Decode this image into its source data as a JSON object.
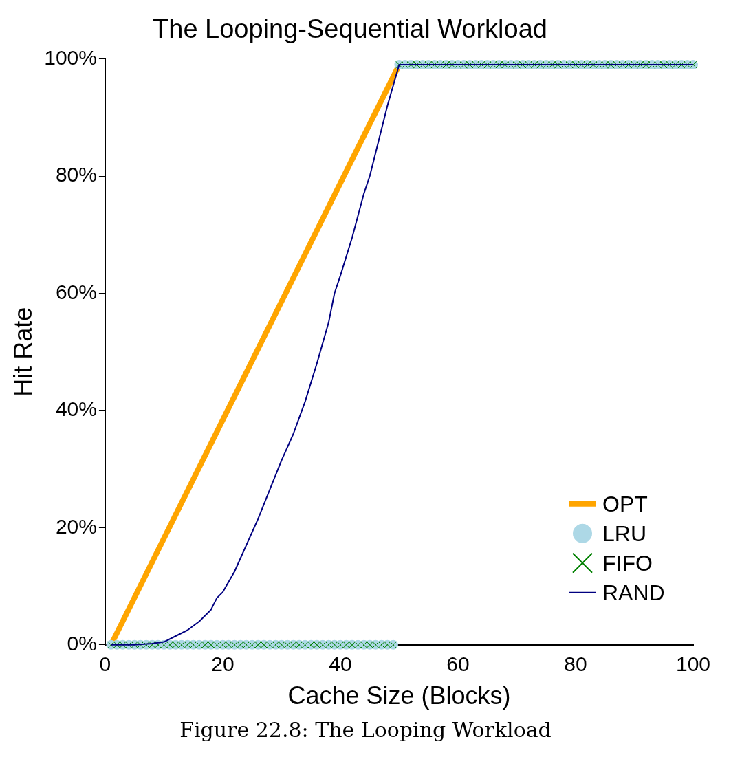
{
  "chart_data": {
    "type": "line",
    "title": "The Looping-Sequential Workload",
    "xlabel": "Cache Size (Blocks)",
    "ylabel": "Hit Rate",
    "annotations": [
      "Figure 22.8: The Looping Workload"
    ],
    "x": [
      1,
      2,
      3,
      4,
      5,
      6,
      7,
      8,
      9,
      10,
      11,
      12,
      13,
      14,
      15,
      16,
      17,
      18,
      19,
      20,
      21,
      22,
      23,
      24,
      25,
      26,
      27,
      28,
      29,
      30,
      31,
      32,
      33,
      34,
      35,
      36,
      37,
      38,
      39,
      40,
      41,
      42,
      43,
      44,
      45,
      46,
      47,
      48,
      49,
      50,
      51,
      52,
      53,
      54,
      55,
      56,
      57,
      58,
      59,
      60,
      61,
      62,
      63,
      64,
      65,
      66,
      67,
      68,
      69,
      70,
      71,
      72,
      73,
      74,
      75,
      76,
      77,
      78,
      79,
      80,
      81,
      82,
      83,
      84,
      85,
      86,
      87,
      88,
      89,
      90,
      91,
      92,
      93,
      94,
      95,
      96,
      97,
      98,
      99,
      100
    ],
    "series": [
      {
        "name": "OPT",
        "color": "#ffa500",
        "type": "line",
        "marker": "none",
        "x": [
          1,
          50,
          100
        ],
        "values": [
          0,
          99,
          99
        ]
      },
      {
        "name": "LRU",
        "color": "#add8e6",
        "type": "scatter",
        "marker": "circle",
        "values": [
          0,
          0,
          0,
          0,
          0,
          0,
          0,
          0,
          0,
          0,
          0,
          0,
          0,
          0,
          0,
          0,
          0,
          0,
          0,
          0,
          0,
          0,
          0,
          0,
          0,
          0,
          0,
          0,
          0,
          0,
          0,
          0,
          0,
          0,
          0,
          0,
          0,
          0,
          0,
          0,
          0,
          0,
          0,
          0,
          0,
          0,
          0,
          0,
          0,
          99,
          99,
          99,
          99,
          99,
          99,
          99,
          99,
          99,
          99,
          99,
          99,
          99,
          99,
          99,
          99,
          99,
          99,
          99,
          99,
          99,
          99,
          99,
          99,
          99,
          99,
          99,
          99,
          99,
          99,
          99,
          99,
          99,
          99,
          99,
          99,
          99,
          99,
          99,
          99,
          99,
          99,
          99,
          99,
          99,
          99,
          99,
          99,
          99,
          99,
          99
        ]
      },
      {
        "name": "FIFO",
        "color": "#008000",
        "type": "scatter",
        "marker": "cross",
        "values": [
          0,
          0,
          0,
          0,
          0,
          0,
          0,
          0,
          0,
          0,
          0,
          0,
          0,
          0,
          0,
          0,
          0,
          0,
          0,
          0,
          0,
          0,
          0,
          0,
          0,
          0,
          0,
          0,
          0,
          0,
          0,
          0,
          0,
          0,
          0,
          0,
          0,
          0,
          0,
          0,
          0,
          0,
          0,
          0,
          0,
          0,
          0,
          0,
          0,
          99,
          99,
          99,
          99,
          99,
          99,
          99,
          99,
          99,
          99,
          99,
          99,
          99,
          99,
          99,
          99,
          99,
          99,
          99,
          99,
          99,
          99,
          99,
          99,
          99,
          99,
          99,
          99,
          99,
          99,
          99,
          99,
          99,
          99,
          99,
          99,
          99,
          99,
          99,
          99,
          99,
          99,
          99,
          99,
          99,
          99,
          99,
          99,
          99,
          99,
          99
        ]
      },
      {
        "name": "RAND",
        "color": "#000080",
        "type": "line",
        "marker": "none",
        "x": [
          1,
          5,
          8,
          10,
          12,
          14,
          16,
          18,
          19,
          20,
          22,
          24,
          26,
          28,
          30,
          32,
          34,
          36,
          38,
          39,
          40,
          42,
          44,
          45,
          46,
          48,
          50,
          100
        ],
        "values": [
          0,
          0,
          0.2,
          0.5,
          1.5,
          2.5,
          4,
          6,
          8,
          9,
          12.5,
          17,
          21.5,
          26.5,
          31.5,
          36,
          41.5,
          48,
          55,
          60,
          63,
          69.5,
          77,
          80,
          84,
          92,
          99,
          99
        ]
      }
    ],
    "xlim": [
      0,
      100
    ],
    "xticks": [
      0,
      20,
      40,
      60,
      80,
      100
    ],
    "ylim": [
      0,
      100
    ],
    "yticks": [
      {
        "value": 0,
        "label": "0%"
      },
      {
        "value": 20,
        "label": "20%"
      },
      {
        "value": 40,
        "label": "40%"
      },
      {
        "value": 60,
        "label": "60%"
      },
      {
        "value": 80,
        "label": "80%"
      },
      {
        "value": 100,
        "label": "100%"
      }
    ],
    "grid": false,
    "legend": "bottom right"
  }
}
